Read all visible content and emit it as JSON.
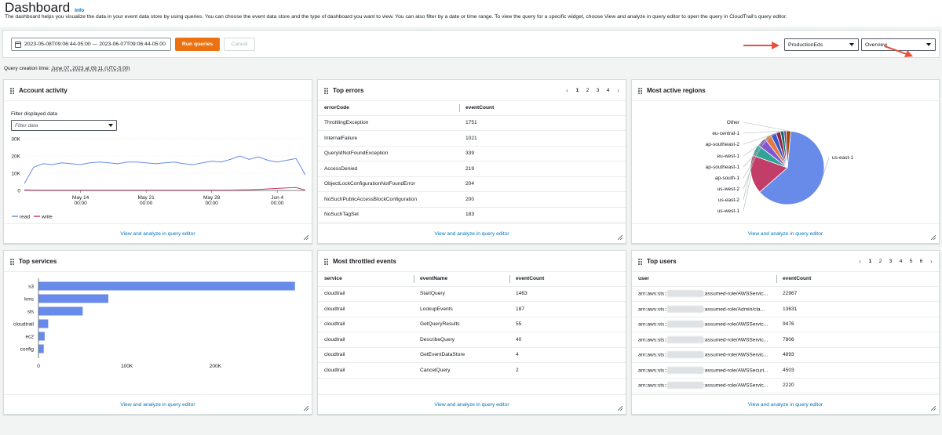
{
  "page": {
    "title": "Dashboard",
    "info": "Info",
    "description": "The dashboard helps you visualize the data in your event data store by using queries. You can choose the event data store and the type of dashboard you want to view. You can also filter by a date or time range. To view the query for a specific widget, choose View and analyze in query editor to open the query in CloudTrail's query editor."
  },
  "toolbar": {
    "date_range": "2023-05-08T09:06:44-05:00 — 2023-06-07T09:06:44-05:00",
    "run_label": "Run queries",
    "cancel_label": "Cancel",
    "event_data_store": "ProductionEds",
    "dashboard_type": "Overview"
  },
  "creation": {
    "label": "Query creation time: ",
    "value": "June 07, 2023 at 09:11 (UTC-5:00)"
  },
  "footer_link": "View and analyze in query editor",
  "account_activity": {
    "title": "Account activity",
    "filter_label": "Filter displayed data",
    "filter_placeholder": "Filter data",
    "chart_data": {
      "type": "line",
      "x": [
        "May 8",
        "May 9",
        "May 10",
        "May 11",
        "May 12",
        "May 13",
        "May 14",
        "May 15",
        "May 16",
        "May 17",
        "May 18",
        "May 19",
        "May 20",
        "May 21",
        "May 22",
        "May 23",
        "May 24",
        "May 25",
        "May 26",
        "May 27",
        "May 28",
        "May 29",
        "May 30",
        "May 31",
        "Jun 1",
        "Jun 2",
        "Jun 3",
        "Jun 4",
        "Jun 5",
        "Jun 6",
        "Jun 7"
      ],
      "series": [
        {
          "name": "read",
          "color": "#688ae8",
          "values": [
            4000,
            13500,
            15500,
            15000,
            16000,
            15500,
            15000,
            16000,
            16500,
            16000,
            15500,
            16500,
            16500,
            16000,
            15500,
            16000,
            16500,
            15500,
            15000,
            16000,
            17000,
            16500,
            18000,
            20000,
            18000,
            19500,
            17500,
            16500,
            17500,
            18500,
            9000
          ]
        },
        {
          "name": "write",
          "color": "#c33d69",
          "values": [
            300,
            250,
            250,
            250,
            250,
            250,
            250,
            250,
            250,
            250,
            250,
            250,
            250,
            250,
            250,
            250,
            250,
            250,
            250,
            250,
            250,
            250,
            250,
            300,
            400,
            600,
            900,
            1200,
            1500,
            1700,
            200
          ]
        }
      ],
      "x_ticks": [
        {
          "label": "May 14",
          "sub": "00:00"
        },
        {
          "label": "May 21",
          "sub": "00:00"
        },
        {
          "label": "May 28",
          "sub": "00:00"
        },
        {
          "label": "Jun 4",
          "sub": "00:00"
        }
      ],
      "y_ticks": [
        "30K",
        "20K",
        "10K",
        "0"
      ],
      "ylim": [
        0,
        30000
      ]
    }
  },
  "top_errors": {
    "title": "Top errors",
    "pages": [
      "1",
      "2",
      "3",
      "4"
    ],
    "columns": [
      "errorCode",
      "eventCount"
    ],
    "rows": [
      [
        "ThrottlingException",
        "1751"
      ],
      [
        "InternalFailure",
        "1021"
      ],
      [
        "QueryIdNotFoundException",
        "339"
      ],
      [
        "AccessDenied",
        "219"
      ],
      [
        "ObjectLockConfigurationNotFoundError",
        "204"
      ],
      [
        "NoSuchPublicAccessBlockConfiguration",
        "200"
      ],
      [
        "NoSuchTagSet",
        "183"
      ]
    ]
  },
  "regions": {
    "title": "Most active regions",
    "chart_data": {
      "type": "pie",
      "labels": [
        "us-east-1",
        "us-west-1",
        "us-east-2",
        "us-west-2",
        "ap-south-1",
        "ap-southeast-1",
        "eu-west-1",
        "ap-southeast-2",
        "eu-central-1",
        "Other"
      ],
      "values": [
        62,
        17,
        5,
        4,
        3,
        2.5,
        2,
        1.5,
        1,
        2
      ],
      "colors": [
        "#688ae8",
        "#c33d69",
        "#2ea597",
        "#8456ce",
        "#e07941",
        "#3759ce",
        "#962249",
        "#096f64",
        "#6237a7",
        "#a84401"
      ]
    }
  },
  "services": {
    "title": "Top services",
    "chart_data": {
      "type": "bar",
      "orientation": "horizontal",
      "categories": [
        "s3",
        "kms",
        "sts",
        "cloudtrail",
        "ec2",
        "config"
      ],
      "values": [
        290000,
        79000,
        50000,
        11000,
        7000,
        6000
      ],
      "x_ticks": [
        "0",
        "100K",
        "200K"
      ],
      "xlim": [
        0,
        300000
      ],
      "color": "#688ae8"
    }
  },
  "throttled": {
    "title": "Most throttled events",
    "columns": [
      "service",
      "eventName",
      "eventCount"
    ],
    "rows": [
      [
        "cloudtrail",
        "StartQuery",
        "1463"
      ],
      [
        "cloudtrail",
        "LookupEvents",
        "187"
      ],
      [
        "cloudtrail",
        "GetQueryResults",
        "55"
      ],
      [
        "cloudtrail",
        "DescribeQuery",
        "40"
      ],
      [
        "cloudtrail",
        "GetEventDataStore",
        "4"
      ],
      [
        "cloudtrail",
        "CancelQuery",
        "2"
      ]
    ]
  },
  "top_users": {
    "title": "Top users",
    "pages": [
      "1",
      "2",
      "3",
      "4",
      "5",
      "6"
    ],
    "columns": [
      "user",
      "eventCount"
    ],
    "rows": [
      {
        "prefix": "arn:aws:sts::",
        "suffix": ":assumed-role/AWSServic...",
        "count": "22967"
      },
      {
        "prefix": "arn:aws:sts::",
        "suffix": ":assumed-role/Admin/cla...",
        "count": "13631"
      },
      {
        "prefix": "arn:aws:sts::",
        "suffix": ":assumed-role/AWSServic...",
        "count": "9476"
      },
      {
        "prefix": "arn:aws:sts::",
        "suffix": ":assumed-role/AWSServic...",
        "count": "7806"
      },
      {
        "prefix": "arn:aws:sts::",
        "suffix": ":assumed-role/AWSServic...",
        "count": "4893"
      },
      {
        "prefix": "arn:aws:sts::",
        "suffix": ":assumed-role/AWSSecuri...",
        "count": "4503"
      },
      {
        "prefix": "arn:aws:sts::",
        "suffix": ":assumed-role/AWSServic...",
        "count": "2220"
      }
    ]
  }
}
